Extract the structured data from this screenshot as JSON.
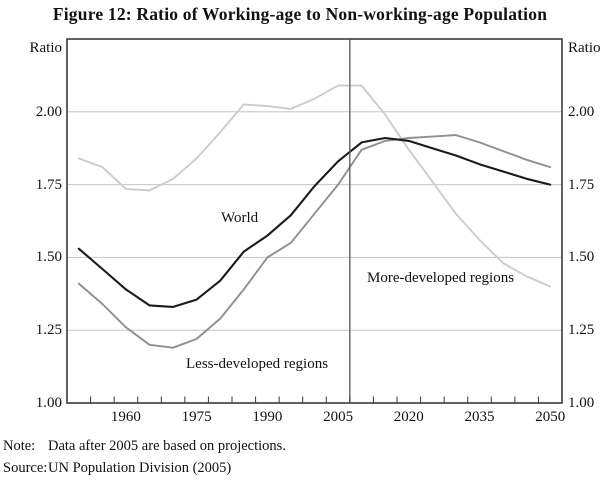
{
  "figure": {
    "title": "Figure 12: Ratio of Working-age to Non-working-age Population",
    "y_axis_unit_left": "Ratio",
    "y_axis_unit_right": "Ratio",
    "note_label": "Note:",
    "note_text": "Data after 2005 are based on projections.",
    "source_label": "Source:",
    "source_text": "UN Population Division (2005)"
  },
  "chart_data": {
    "type": "line",
    "title": "Figure 12: Ratio of Working-age to Non-working-age Population",
    "xlabel": "",
    "ylabel": "Ratio",
    "grid": "horizontal",
    "legend_position": "inline-labels",
    "xlim": [
      1947.5,
      2052.5
    ],
    "ylim": [
      1.0,
      2.25
    ],
    "x": [
      1950,
      1955,
      1960,
      1965,
      1970,
      1975,
      1980,
      1985,
      1990,
      1995,
      2000,
      2005,
      2010,
      2015,
      2020,
      2025,
      2030,
      2035,
      2040,
      2045,
      2050
    ],
    "series": [
      {
        "name": "World",
        "color": "#1a1a1a",
        "width": 2.1,
        "values": [
          1.53,
          1.46,
          1.39,
          1.335,
          1.33,
          1.355,
          1.42,
          1.52,
          1.575,
          1.645,
          1.745,
          1.83,
          1.895,
          1.91,
          1.9,
          1.875,
          1.85,
          1.82,
          1.795,
          1.77,
          1.75
        ]
      },
      {
        "name": "Less-developed regions",
        "color": "#8f8f8f",
        "width": 1.9,
        "values": [
          1.41,
          1.34,
          1.26,
          1.2,
          1.19,
          1.22,
          1.29,
          1.39,
          1.5,
          1.55,
          1.65,
          1.75,
          1.87,
          1.9,
          1.91,
          1.915,
          1.92,
          1.895,
          1.865,
          1.835,
          1.81
        ]
      },
      {
        "name": "More-developed regions",
        "color": "#cccccc",
        "width": 1.9,
        "values": [
          1.84,
          1.81,
          1.735,
          1.73,
          1.77,
          1.84,
          1.93,
          2.025,
          2.02,
          2.01,
          2.045,
          2.09,
          2.09,
          1.99,
          1.87,
          1.76,
          1.65,
          1.56,
          1.48,
          1.435,
          1.4
        ]
      }
    ],
    "yticks": [
      {
        "label": "1.00",
        "value": 1.0
      },
      {
        "label": "1.25",
        "value": 1.25
      },
      {
        "label": "1.50",
        "value": 1.5
      },
      {
        "label": "1.75",
        "value": 1.75
      },
      {
        "label": "2.00",
        "value": 2.0
      }
    ],
    "xticks": [
      {
        "label": "1960",
        "value": 1960
      },
      {
        "label": "1975",
        "value": 1975
      },
      {
        "label": "1990",
        "value": 1990
      },
      {
        "label": "2005",
        "value": 2005
      },
      {
        "label": "2020",
        "value": 2020
      },
      {
        "label": "2035",
        "value": 2035
      },
      {
        "label": "2050",
        "value": 2050
      }
    ],
    "minor_tick_step": 5,
    "minor_tick_range": [
      1952.5,
      2047.5
    ],
    "vline_x": 2007.5,
    "colors": {
      "frame": "#3a3a3a",
      "gridline": "#c5c5c5",
      "vline": "#555555",
      "text": "#111111"
    }
  }
}
